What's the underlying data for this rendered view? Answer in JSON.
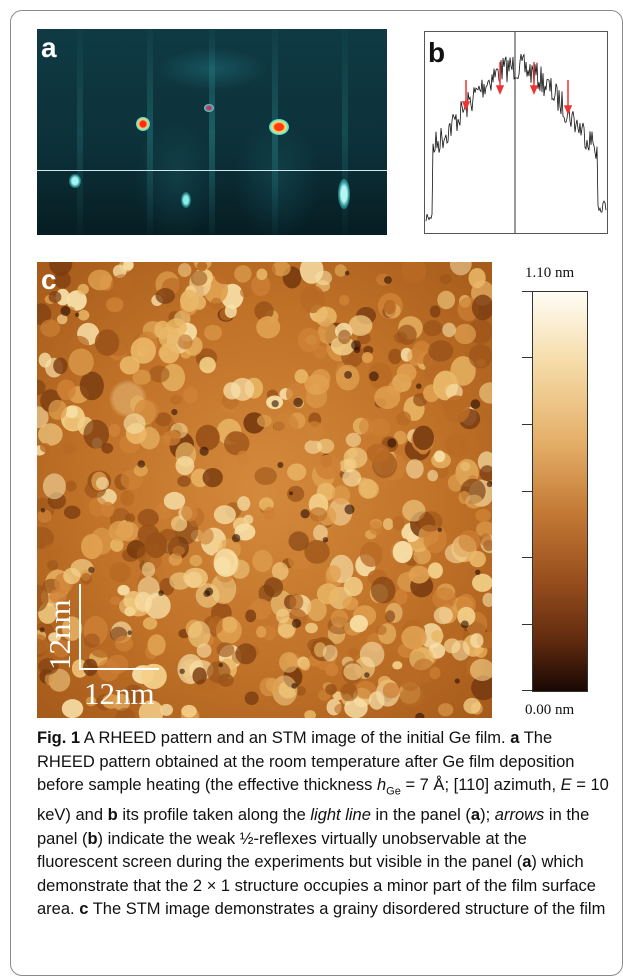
{
  "panels": {
    "a_label": "a",
    "b_label": "b",
    "c_label": "c"
  },
  "stm": {
    "scale_vertical": "12nm",
    "scale_horizontal": "12nm",
    "colorbar_max": "1.10 nm",
    "colorbar_min": "0.00 nm"
  },
  "caption": {
    "fig_label": "Fig. 1",
    "title": "A RHEED pattern and an STM image of the initial Ge film.",
    "a_marker": "a",
    "a_text_1": "The RHEED pattern obtained at the room temperature after Ge film deposition before sample heating (the effective thickness",
    "h_symbol": "h",
    "h_subscript": "Ge",
    "a_text_2": "= 7 Å; [110] azimuth,",
    "e_symbol": "E",
    "a_text_3": "= 10 keV) and",
    "b_marker": "b",
    "b_text_1": "its profile taken along the",
    "light_line": "light line",
    "b_text_2": "in the panel (",
    "b_ref_a": "a",
    "b_text_3": ");",
    "arrows": "arrows",
    "b_text_4": "in the panel (",
    "b_ref_b": "b",
    "b_text_5": ") indicate the weak ½-reflexes virtually unobservable at the fluorescent screen during the experiments but visible in the panel (",
    "b_ref_a2": "a",
    "b_text_6": ") which demonstrate that the 2 × 1 structure occupies a minor part of the film surface area.",
    "c_marker": "c",
    "c_text": "The STM image demonstrates a grainy disordered structure of the film"
  }
}
